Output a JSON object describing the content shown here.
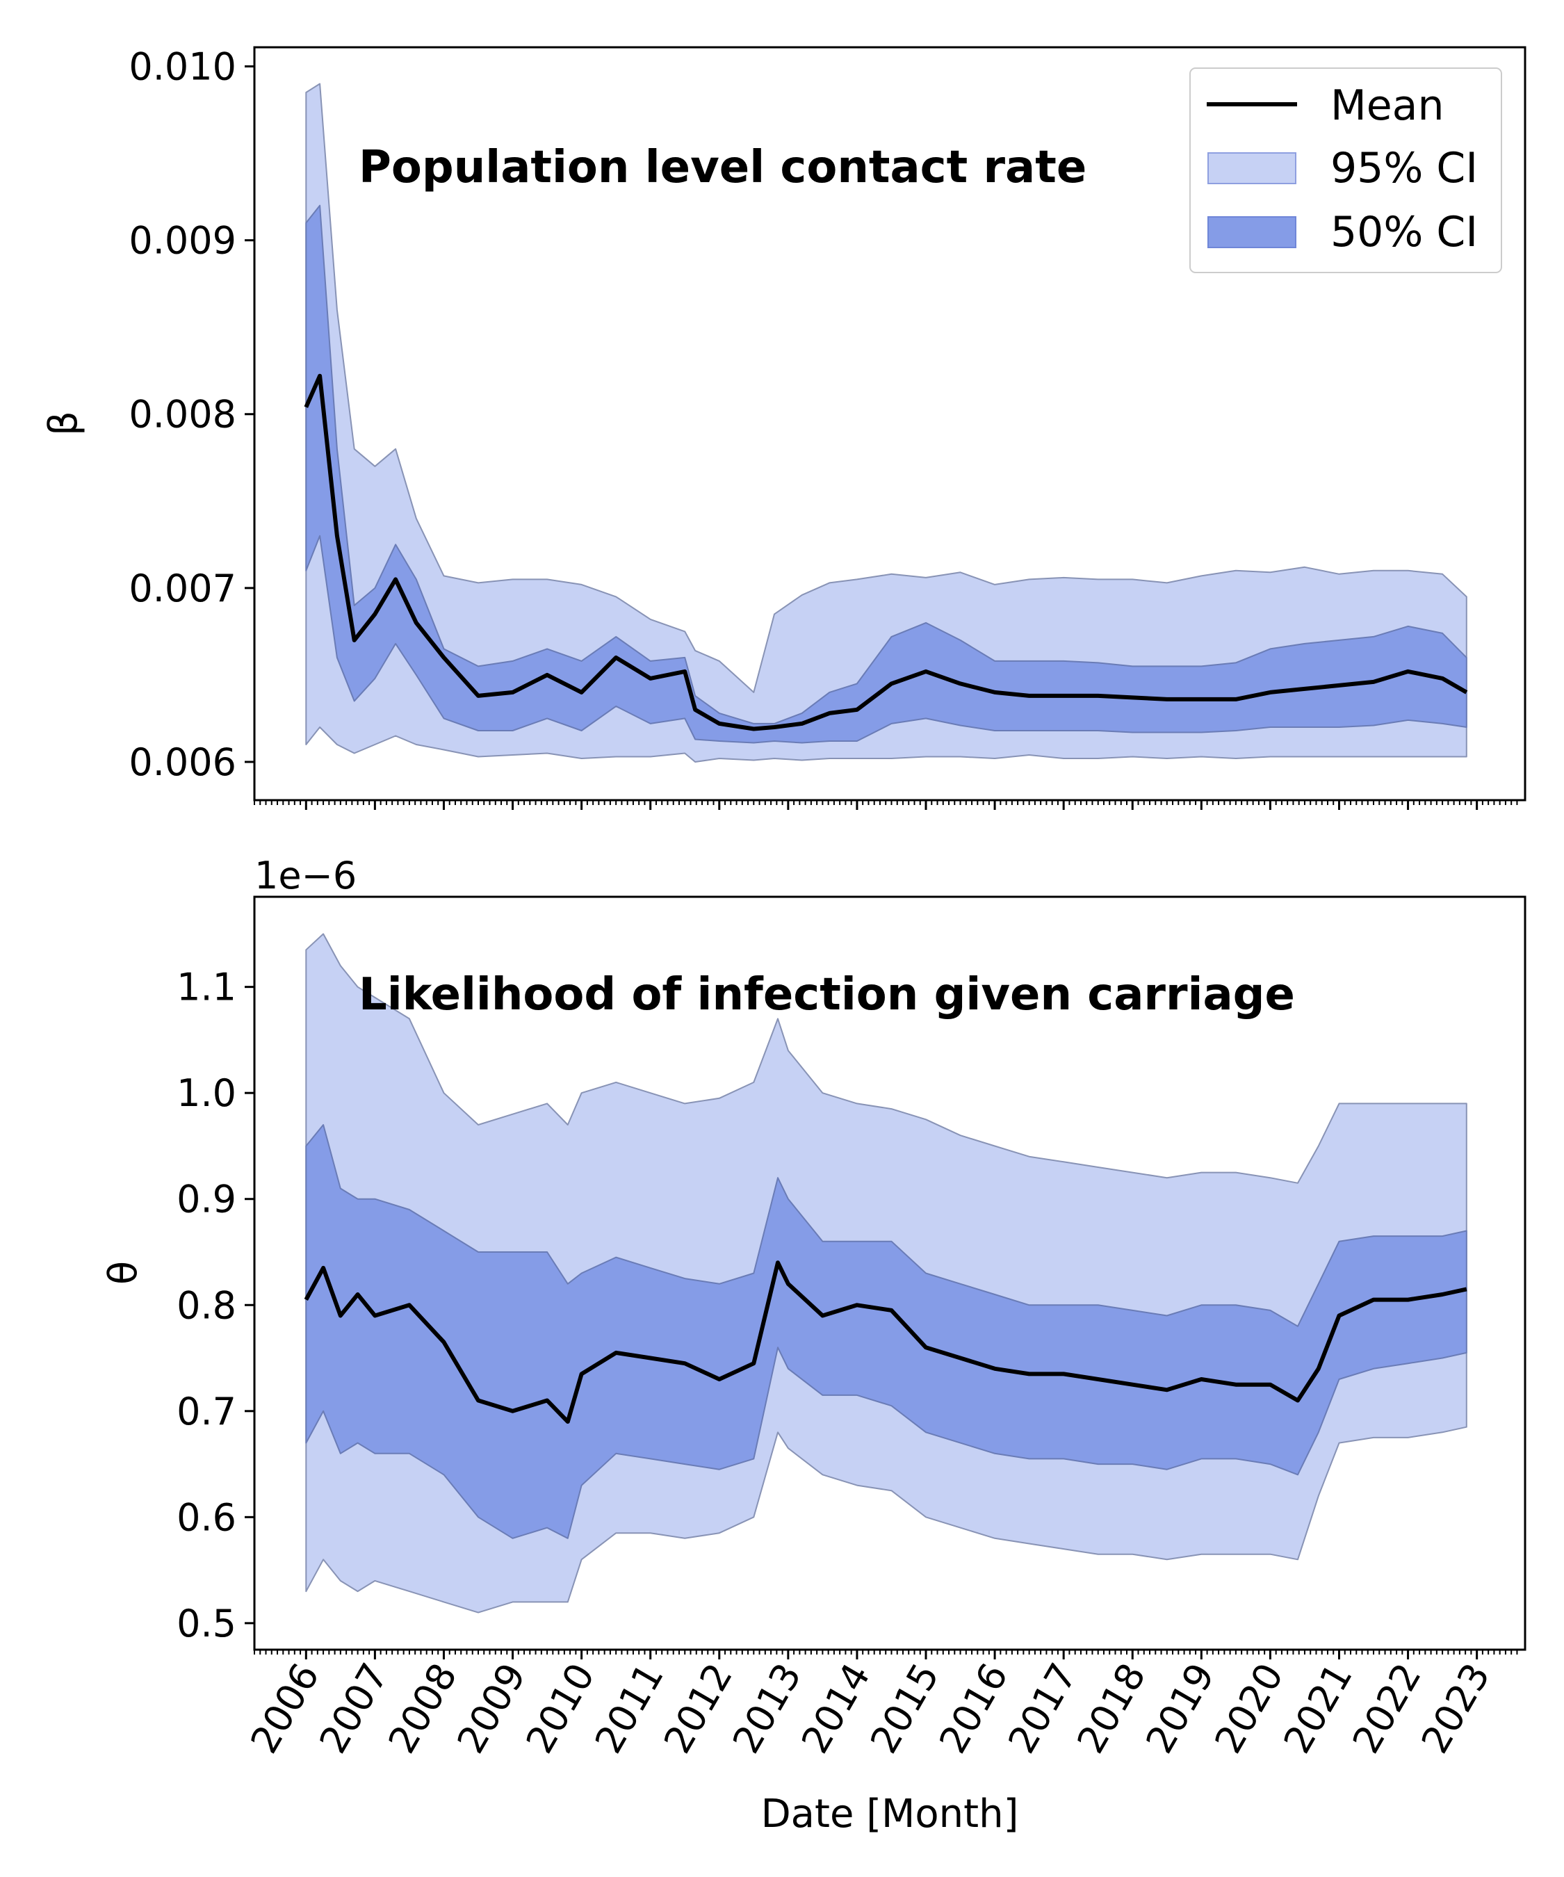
{
  "chart_data": [
    {
      "type": "area",
      "title": "Population level contact rate",
      "ylabel": "β",
      "xlabel": "",
      "ylim": [
        0.00578,
        0.01011
      ],
      "yticks": [
        0.006,
        0.007,
        0.008,
        0.009,
        0.01
      ],
      "ytick_labels": [
        "0.006",
        "0.007",
        "0.008",
        "0.009",
        "0.010"
      ],
      "grid": false,
      "legend": {
        "placement": "top-right",
        "entries": [
          {
            "label": "Mean",
            "kind": "line",
            "color": "#000000"
          },
          {
            "label": "95% CI",
            "kind": "patch",
            "color": "#c6d1f4"
          },
          {
            "label": "50% CI",
            "kind": "patch",
            "color": "#859ce7"
          }
        ]
      },
      "x": [
        2006.0,
        2006.2,
        2006.45,
        2006.7,
        2007.0,
        2007.3,
        2007.6,
        2008.0,
        2008.5,
        2009.0,
        2009.5,
        2010.0,
        2010.5,
        2011.0,
        2011.5,
        2011.65,
        2012.0,
        2012.5,
        2012.8,
        2013.2,
        2013.6,
        2014.0,
        2014.5,
        2015.0,
        2015.5,
        2016.0,
        2016.5,
        2017.0,
        2017.5,
        2018.0,
        2018.5,
        2019.0,
        2019.5,
        2020.0,
        2020.5,
        2021.0,
        2021.5,
        2022.0,
        2022.5,
        2022.85
      ],
      "series": [
        {
          "name": "Mean",
          "values": [
            0.00804,
            0.00822,
            0.0073,
            0.0067,
            0.00685,
            0.00705,
            0.0068,
            0.0066,
            0.00638,
            0.0064,
            0.0065,
            0.0064,
            0.0066,
            0.00648,
            0.00652,
            0.0063,
            0.00622,
            0.00619,
            0.0062,
            0.00622,
            0.00628,
            0.0063,
            0.00645,
            0.00652,
            0.00645,
            0.0064,
            0.00638,
            0.00638,
            0.00638,
            0.00637,
            0.00636,
            0.00636,
            0.00636,
            0.0064,
            0.00642,
            0.00644,
            0.00646,
            0.00652,
            0.00648,
            0.0064
          ]
        },
        {
          "name": "95% CI upper",
          "values": [
            0.00985,
            0.0099,
            0.0086,
            0.0078,
            0.0077,
            0.0078,
            0.0074,
            0.00707,
            0.00703,
            0.00705,
            0.00705,
            0.00702,
            0.00695,
            0.00682,
            0.00675,
            0.00664,
            0.00658,
            0.0064,
            0.00685,
            0.00696,
            0.00703,
            0.00705,
            0.00708,
            0.00706,
            0.00709,
            0.00702,
            0.00705,
            0.00706,
            0.00705,
            0.00705,
            0.00703,
            0.00707,
            0.0071,
            0.00709,
            0.00712,
            0.00708,
            0.0071,
            0.0071,
            0.00708,
            0.00695
          ]
        },
        {
          "name": "95% CI lower",
          "values": [
            0.0061,
            0.0062,
            0.0061,
            0.00605,
            0.0061,
            0.00615,
            0.0061,
            0.00607,
            0.00603,
            0.00604,
            0.00605,
            0.00602,
            0.00603,
            0.00603,
            0.00605,
            0.006,
            0.00602,
            0.00601,
            0.00602,
            0.00601,
            0.00602,
            0.00602,
            0.00602,
            0.00603,
            0.00603,
            0.00602,
            0.00604,
            0.00602,
            0.00602,
            0.00603,
            0.00602,
            0.00603,
            0.00602,
            0.00603,
            0.00603,
            0.00603,
            0.00603,
            0.00603,
            0.00603,
            0.00603
          ]
        },
        {
          "name": "50% CI upper",
          "values": [
            0.0091,
            0.0092,
            0.0078,
            0.0069,
            0.007,
            0.00725,
            0.00705,
            0.00665,
            0.00655,
            0.00658,
            0.00665,
            0.00658,
            0.00672,
            0.00658,
            0.0066,
            0.00638,
            0.00628,
            0.00622,
            0.00622,
            0.00628,
            0.0064,
            0.00645,
            0.00672,
            0.0068,
            0.0067,
            0.00658,
            0.00658,
            0.00658,
            0.00657,
            0.00655,
            0.00655,
            0.00655,
            0.00657,
            0.00665,
            0.00668,
            0.0067,
            0.00672,
            0.00678,
            0.00674,
            0.0066
          ]
        },
        {
          "name": "50% CI lower",
          "values": [
            0.0071,
            0.0073,
            0.0066,
            0.00635,
            0.00648,
            0.00668,
            0.0065,
            0.00625,
            0.00618,
            0.00618,
            0.00625,
            0.00618,
            0.00632,
            0.00622,
            0.00625,
            0.00613,
            0.00612,
            0.00611,
            0.00612,
            0.00611,
            0.00612,
            0.00612,
            0.00622,
            0.00625,
            0.00621,
            0.00618,
            0.00618,
            0.00618,
            0.00618,
            0.00617,
            0.00617,
            0.00617,
            0.00618,
            0.0062,
            0.0062,
            0.0062,
            0.00621,
            0.00624,
            0.00622,
            0.0062
          ]
        }
      ]
    },
    {
      "type": "area",
      "title": "Likelihood of infection given carriage",
      "ylabel": "θ",
      "xlabel": "Date [Month]",
      "offset_label": "1e−6",
      "ylim": [
        0.475,
        1.185
      ],
      "yticks": [
        0.5,
        0.6,
        0.7,
        0.8,
        0.9,
        1.0,
        1.1
      ],
      "ytick_labels": [
        "0.5",
        "0.6",
        "0.7",
        "0.8",
        "0.9",
        "1.0",
        "1.1"
      ],
      "xticks": [
        2006,
        2007,
        2008,
        2009,
        2010,
        2011,
        2012,
        2013,
        2014,
        2015,
        2016,
        2017,
        2018,
        2019,
        2020,
        2021,
        2022,
        2023
      ],
      "xtick_labels": [
        "2006",
        "2007",
        "2008",
        "2009",
        "2010",
        "2011",
        "2012",
        "2013",
        "2014",
        "2015",
        "2016",
        "2017",
        "2018",
        "2019",
        "2020",
        "2021",
        "2022",
        "2023"
      ],
      "xlim": [
        2005.25,
        2023.7
      ],
      "grid": false,
      "x": [
        2006.0,
        2006.25,
        2006.5,
        2006.75,
        2007.0,
        2007.5,
        2008.0,
        2008.5,
        2009.0,
        2009.5,
        2009.8,
        2010.0,
        2010.5,
        2011.0,
        2011.5,
        2012.0,
        2012.5,
        2012.85,
        2013.0,
        2013.5,
        2014.0,
        2014.5,
        2015.0,
        2015.5,
        2016.0,
        2016.5,
        2017.0,
        2017.5,
        2018.0,
        2018.5,
        2019.0,
        2019.5,
        2020.0,
        2020.4,
        2020.7,
        2021.0,
        2021.5,
        2022.0,
        2022.5,
        2022.85
      ],
      "series": [
        {
          "name": "Mean",
          "values": [
            0.805,
            0.835,
            0.79,
            0.81,
            0.79,
            0.8,
            0.765,
            0.71,
            0.7,
            0.71,
            0.69,
            0.735,
            0.755,
            0.75,
            0.745,
            0.73,
            0.745,
            0.84,
            0.82,
            0.79,
            0.8,
            0.795,
            0.76,
            0.75,
            0.74,
            0.735,
            0.735,
            0.73,
            0.725,
            0.72,
            0.73,
            0.725,
            0.725,
            0.71,
            0.74,
            0.79,
            0.805,
            0.805,
            0.81,
            0.815
          ]
        },
        {
          "name": "95% CI upper",
          "values": [
            1.135,
            1.15,
            1.12,
            1.1,
            1.09,
            1.07,
            1.0,
            0.97,
            0.98,
            0.99,
            0.97,
            1.0,
            1.01,
            1.0,
            0.99,
            0.995,
            1.01,
            1.07,
            1.04,
            1.0,
            0.99,
            0.985,
            0.975,
            0.96,
            0.95,
            0.94,
            0.935,
            0.93,
            0.925,
            0.92,
            0.925,
            0.925,
            0.92,
            0.915,
            0.95,
            0.99,
            0.99,
            0.99,
            0.99,
            0.99
          ]
        },
        {
          "name": "95% CI lower",
          "values": [
            0.53,
            0.56,
            0.54,
            0.53,
            0.54,
            0.53,
            0.52,
            0.51,
            0.52,
            0.52,
            0.52,
            0.56,
            0.585,
            0.585,
            0.58,
            0.585,
            0.6,
            0.68,
            0.665,
            0.64,
            0.63,
            0.625,
            0.6,
            0.59,
            0.58,
            0.575,
            0.57,
            0.565,
            0.565,
            0.56,
            0.565,
            0.565,
            0.565,
            0.56,
            0.62,
            0.67,
            0.675,
            0.675,
            0.68,
            0.685
          ]
        },
        {
          "name": "50% CI upper",
          "values": [
            0.95,
            0.97,
            0.91,
            0.9,
            0.9,
            0.89,
            0.87,
            0.85,
            0.85,
            0.85,
            0.82,
            0.83,
            0.845,
            0.835,
            0.825,
            0.82,
            0.83,
            0.92,
            0.9,
            0.86,
            0.86,
            0.86,
            0.83,
            0.82,
            0.81,
            0.8,
            0.8,
            0.8,
            0.795,
            0.79,
            0.8,
            0.8,
            0.795,
            0.78,
            0.82,
            0.86,
            0.865,
            0.865,
            0.865,
            0.87
          ]
        },
        {
          "name": "50% CI lower",
          "values": [
            0.67,
            0.7,
            0.66,
            0.67,
            0.66,
            0.66,
            0.64,
            0.6,
            0.58,
            0.59,
            0.58,
            0.63,
            0.66,
            0.655,
            0.65,
            0.645,
            0.655,
            0.76,
            0.74,
            0.715,
            0.715,
            0.705,
            0.68,
            0.67,
            0.66,
            0.655,
            0.655,
            0.65,
            0.65,
            0.645,
            0.655,
            0.655,
            0.65,
            0.64,
            0.68,
            0.73,
            0.74,
            0.745,
            0.75,
            0.755
          ]
        }
      ]
    }
  ]
}
